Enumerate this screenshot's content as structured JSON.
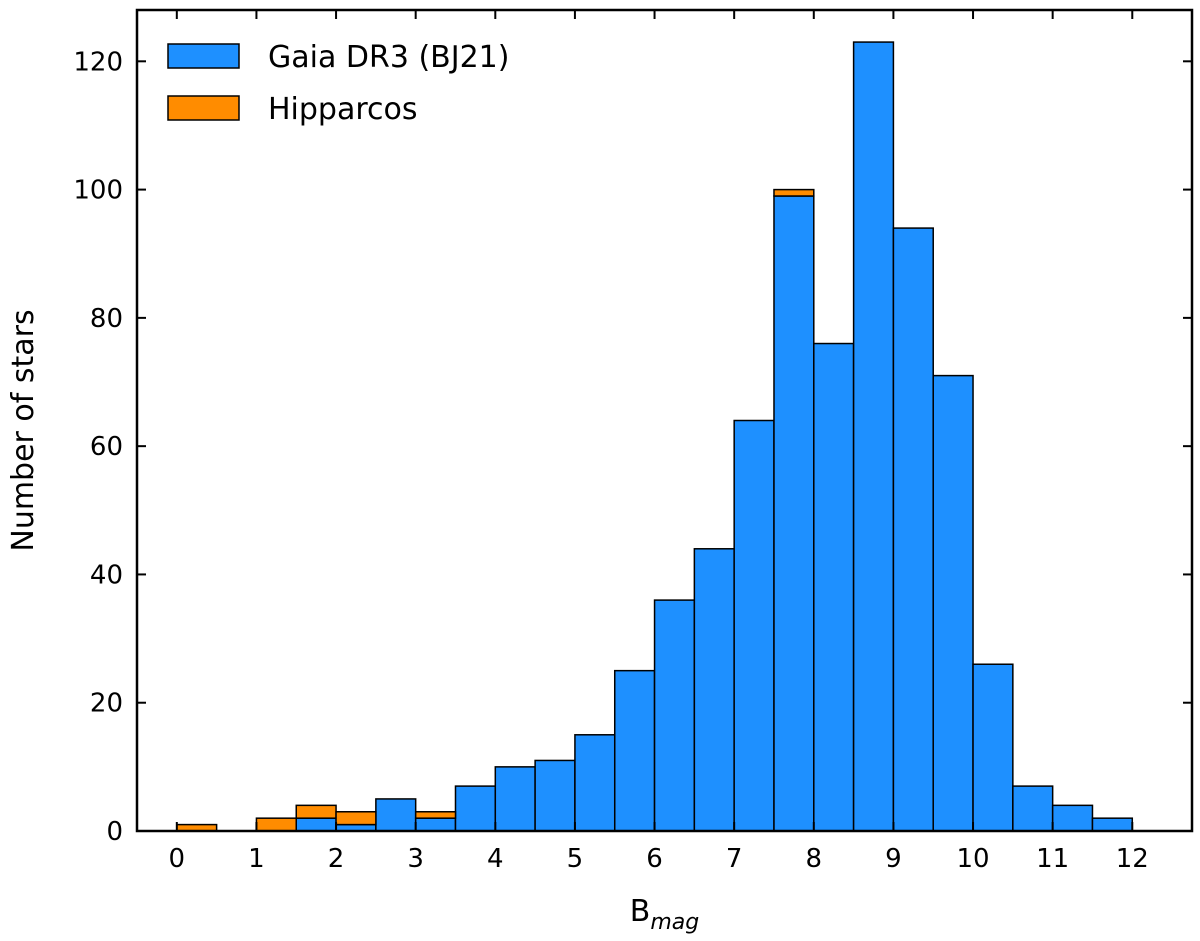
{
  "chart_data": {
    "type": "bar",
    "stacked": true,
    "title": "",
    "xlabel": "B",
    "xlabel_subscript": "mag",
    "ylabel": "Number of stars",
    "xlim": [
      -0.5,
      12.75
    ],
    "ylim": [
      0,
      128
    ],
    "bin_width": 0.5,
    "bin_edges": [
      0.0,
      0.5,
      1.0,
      1.5,
      2.0,
      2.5,
      3.0,
      3.5,
      4.0,
      4.5,
      5.0,
      5.5,
      6.0,
      6.5,
      7.0,
      7.5,
      8.0,
      8.5,
      9.0,
      9.5,
      10.0,
      10.5,
      11.0,
      11.5,
      12.0
    ],
    "x_ticks": [
      0,
      1,
      2,
      3,
      4,
      5,
      6,
      7,
      8,
      9,
      10,
      11,
      12
    ],
    "y_ticks": [
      0,
      20,
      40,
      60,
      80,
      100,
      120
    ],
    "grid": false,
    "legend_position": "top-left",
    "series": [
      {
        "name": "Gaia DR3 (BJ21)",
        "color": "#1e90ff",
        "values": [
          0,
          0,
          0,
          2,
          1,
          5,
          2,
          7,
          10,
          11,
          15,
          25,
          36,
          44,
          64,
          99,
          76,
          123,
          94,
          71,
          26,
          7,
          4,
          2
        ]
      },
      {
        "name": "Hipparcos",
        "color": "#ff8c00",
        "values": [
          1,
          0,
          2,
          2,
          2,
          0,
          1,
          0,
          0,
          0,
          0,
          0,
          0,
          0,
          0,
          1,
          0,
          0,
          0,
          0,
          0,
          0,
          0,
          0
        ]
      }
    ]
  }
}
